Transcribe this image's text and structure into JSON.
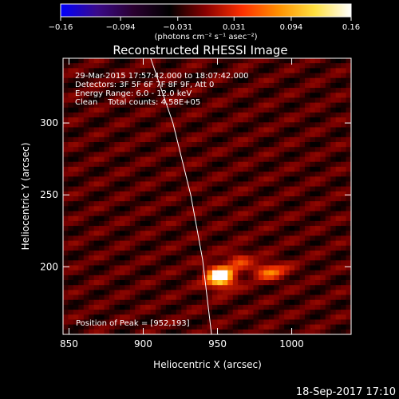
{
  "chart_data": {
    "type": "heatmap",
    "title": "Reconstructed RHESSI Image",
    "xlabel": "Heliocentric X (arcsec)",
    "ylabel": "Heliocentric Y (arcsec)",
    "xlim": [
      846,
      1040
    ],
    "ylim": [
      153,
      345
    ],
    "x_ticks": [
      850,
      900,
      950,
      1000
    ],
    "y_ticks": [
      200,
      250,
      300
    ],
    "colorbar": {
      "range": [
        -0.16,
        0.16
      ],
      "ticks": [
        -0.16,
        -0.094,
        -0.031,
        0.031,
        0.094,
        0.16
      ],
      "tick_labels": [
        "−0.16",
        "−0.094",
        "−0.031",
        "0.031",
        "0.094",
        "0.16"
      ],
      "unit_label": "(photons cm⁻² s⁻¹ asec⁻²)",
      "colors": [
        "#0000ff",
        "#3a0a8a",
        "#2a0030",
        "#000000",
        "#8a0000",
        "#ff3000",
        "#ff9000",
        "#ffe040",
        "#ffffff"
      ]
    },
    "annotations": [
      "29-Mar-2015 17:57:42.000 to 18:07:42.000",
      "Detectors: 3F 5F 6F 7F 8F 9F, Att 0",
      "Energy Range: 6.0 - 12.0 keV",
      "Clean    Total counts: 4.58E+05",
      "Position of Peak = [952,193]"
    ],
    "peak": {
      "x": 952,
      "y": 193,
      "value": 0.16
    },
    "secondary_source": {
      "x": 985,
      "y": 197,
      "value": 0.08
    },
    "limb_line": [
      [
        905,
        345
      ],
      [
        920,
        300
      ],
      [
        932,
        250
      ],
      [
        940,
        205
      ],
      [
        944,
        170
      ],
      [
        946,
        153
      ]
    ]
  },
  "footer": {
    "timestamp": "18-Sep-2017 17:10"
  }
}
